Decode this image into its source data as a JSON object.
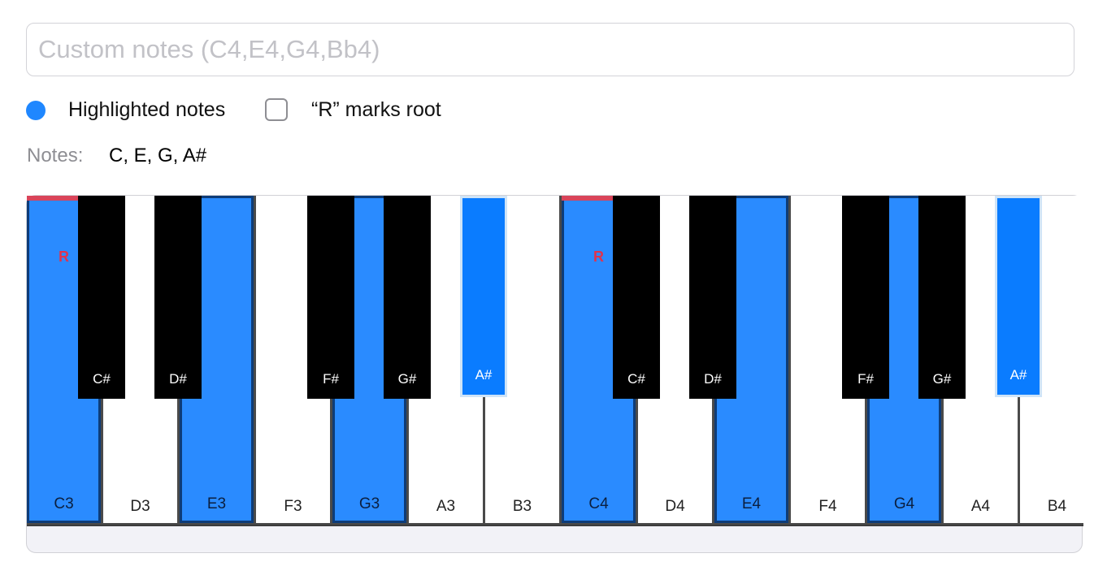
{
  "custom_notes": {
    "placeholder": "Custom notes (C4,E4,G4,Bb4)",
    "value": ""
  },
  "legend": {
    "highlighted_label": "Highlighted notes",
    "highlight_color": "#1f87ff",
    "root_checkbox_label": "“R” marks root",
    "root_checkbox_checked": false
  },
  "notes_summary": {
    "label": "Notes:",
    "value": "C, E, G, A#"
  },
  "piano": {
    "root_marker": "R",
    "white_keys": [
      {
        "note": "C3",
        "highlighted": true,
        "root": true
      },
      {
        "note": "D3",
        "highlighted": false,
        "root": false
      },
      {
        "note": "E3",
        "highlighted": true,
        "root": false
      },
      {
        "note": "F3",
        "highlighted": false,
        "root": false
      },
      {
        "note": "G3",
        "highlighted": true,
        "root": false
      },
      {
        "note": "A3",
        "highlighted": false,
        "root": false
      },
      {
        "note": "B3",
        "highlighted": false,
        "root": false
      },
      {
        "note": "C4",
        "highlighted": true,
        "root": true
      },
      {
        "note": "D4",
        "highlighted": false,
        "root": false
      },
      {
        "note": "E4",
        "highlighted": true,
        "root": false
      },
      {
        "note": "F4",
        "highlighted": false,
        "root": false
      },
      {
        "note": "G4",
        "highlighted": true,
        "root": false
      },
      {
        "note": "A4",
        "highlighted": false,
        "root": false
      },
      {
        "note": "B4",
        "highlighted": false,
        "root": false
      }
    ],
    "black_keys": [
      {
        "note": "C#",
        "highlighted": false
      },
      {
        "note": "D#",
        "highlighted": false
      },
      {
        "note": "F#",
        "highlighted": false
      },
      {
        "note": "G#",
        "highlighted": false
      },
      {
        "note": "A#",
        "highlighted": true
      },
      {
        "note": "C#",
        "highlighted": false
      },
      {
        "note": "D#",
        "highlighted": false
      },
      {
        "note": "F#",
        "highlighted": false
      },
      {
        "note": "G#",
        "highlighted": false
      },
      {
        "note": "A#",
        "highlighted": true
      }
    ]
  }
}
